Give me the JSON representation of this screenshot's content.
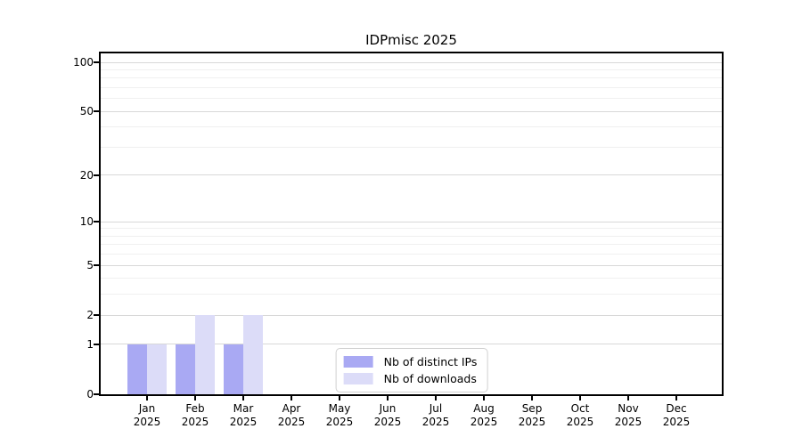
{
  "chart_data": {
    "type": "bar",
    "title": "IDPmisc 2025",
    "categories": [
      "Jan 2025",
      "Feb 2025",
      "Mar 2025",
      "Apr 2025",
      "May 2025",
      "Jun 2025",
      "Jul 2025",
      "Aug 2025",
      "Sep 2025",
      "Oct 2025",
      "Nov 2025",
      "Dec 2025"
    ],
    "series": [
      {
        "name": "Nb of distinct IPs",
        "color": "#a9a9f3",
        "values": [
          1,
          1,
          1,
          0,
          0,
          0,
          0,
          0,
          0,
          0,
          0,
          0
        ]
      },
      {
        "name": "Nb of downloads",
        "color": "#dcdcf8",
        "values": [
          1,
          2,
          2,
          0,
          0,
          0,
          0,
          0,
          0,
          0,
          0,
          0
        ]
      }
    ],
    "xlabel": "",
    "ylabel": "",
    "yscale": "log1p",
    "ylim": [
      0,
      113
    ],
    "yticks_major": [
      0,
      1,
      2,
      5,
      10,
      20,
      50,
      100
    ],
    "yticks_minor": [
      3,
      4,
      6,
      7,
      8,
      9,
      30,
      40,
      60,
      70,
      80,
      90
    ],
    "grid": {
      "major_color": "#d8d8d8",
      "minor_color": "#f0f0f0"
    },
    "axis_color": "#000000",
    "background": "#ffffff",
    "legend_position": "lower center"
  }
}
